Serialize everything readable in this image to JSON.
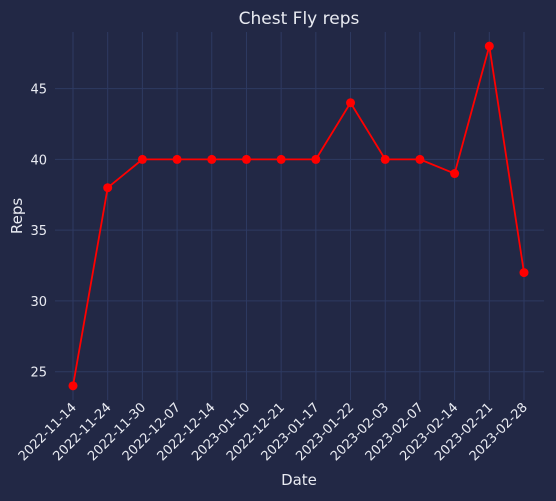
{
  "chart_data": {
    "type": "line",
    "title": "Chest Fly reps",
    "xlabel": "Date",
    "ylabel": "Reps",
    "categories": [
      "2022-11-14",
      "2022-11-24",
      "2022-11-30",
      "2022-12-07",
      "2022-12-14",
      "2023-01-10",
      "2022-12-21",
      "2023-01-17",
      "2023-01-22",
      "2023-02-03",
      "2023-02-07",
      "2023-02-14",
      "2023-02-21",
      "2023-02-28"
    ],
    "series": [
      {
        "values": [
          24,
          38,
          40,
          40,
          40,
          40,
          40,
          40,
          44,
          40,
          40,
          39,
          48,
          32
        ]
      }
    ],
    "ylim": [
      23,
      49
    ],
    "yticks": [
      25,
      30,
      35,
      40,
      45
    ],
    "grid": true,
    "line_color": "#ff0000",
    "background_color": "#222845",
    "grid_color": "#2e3a62"
  }
}
